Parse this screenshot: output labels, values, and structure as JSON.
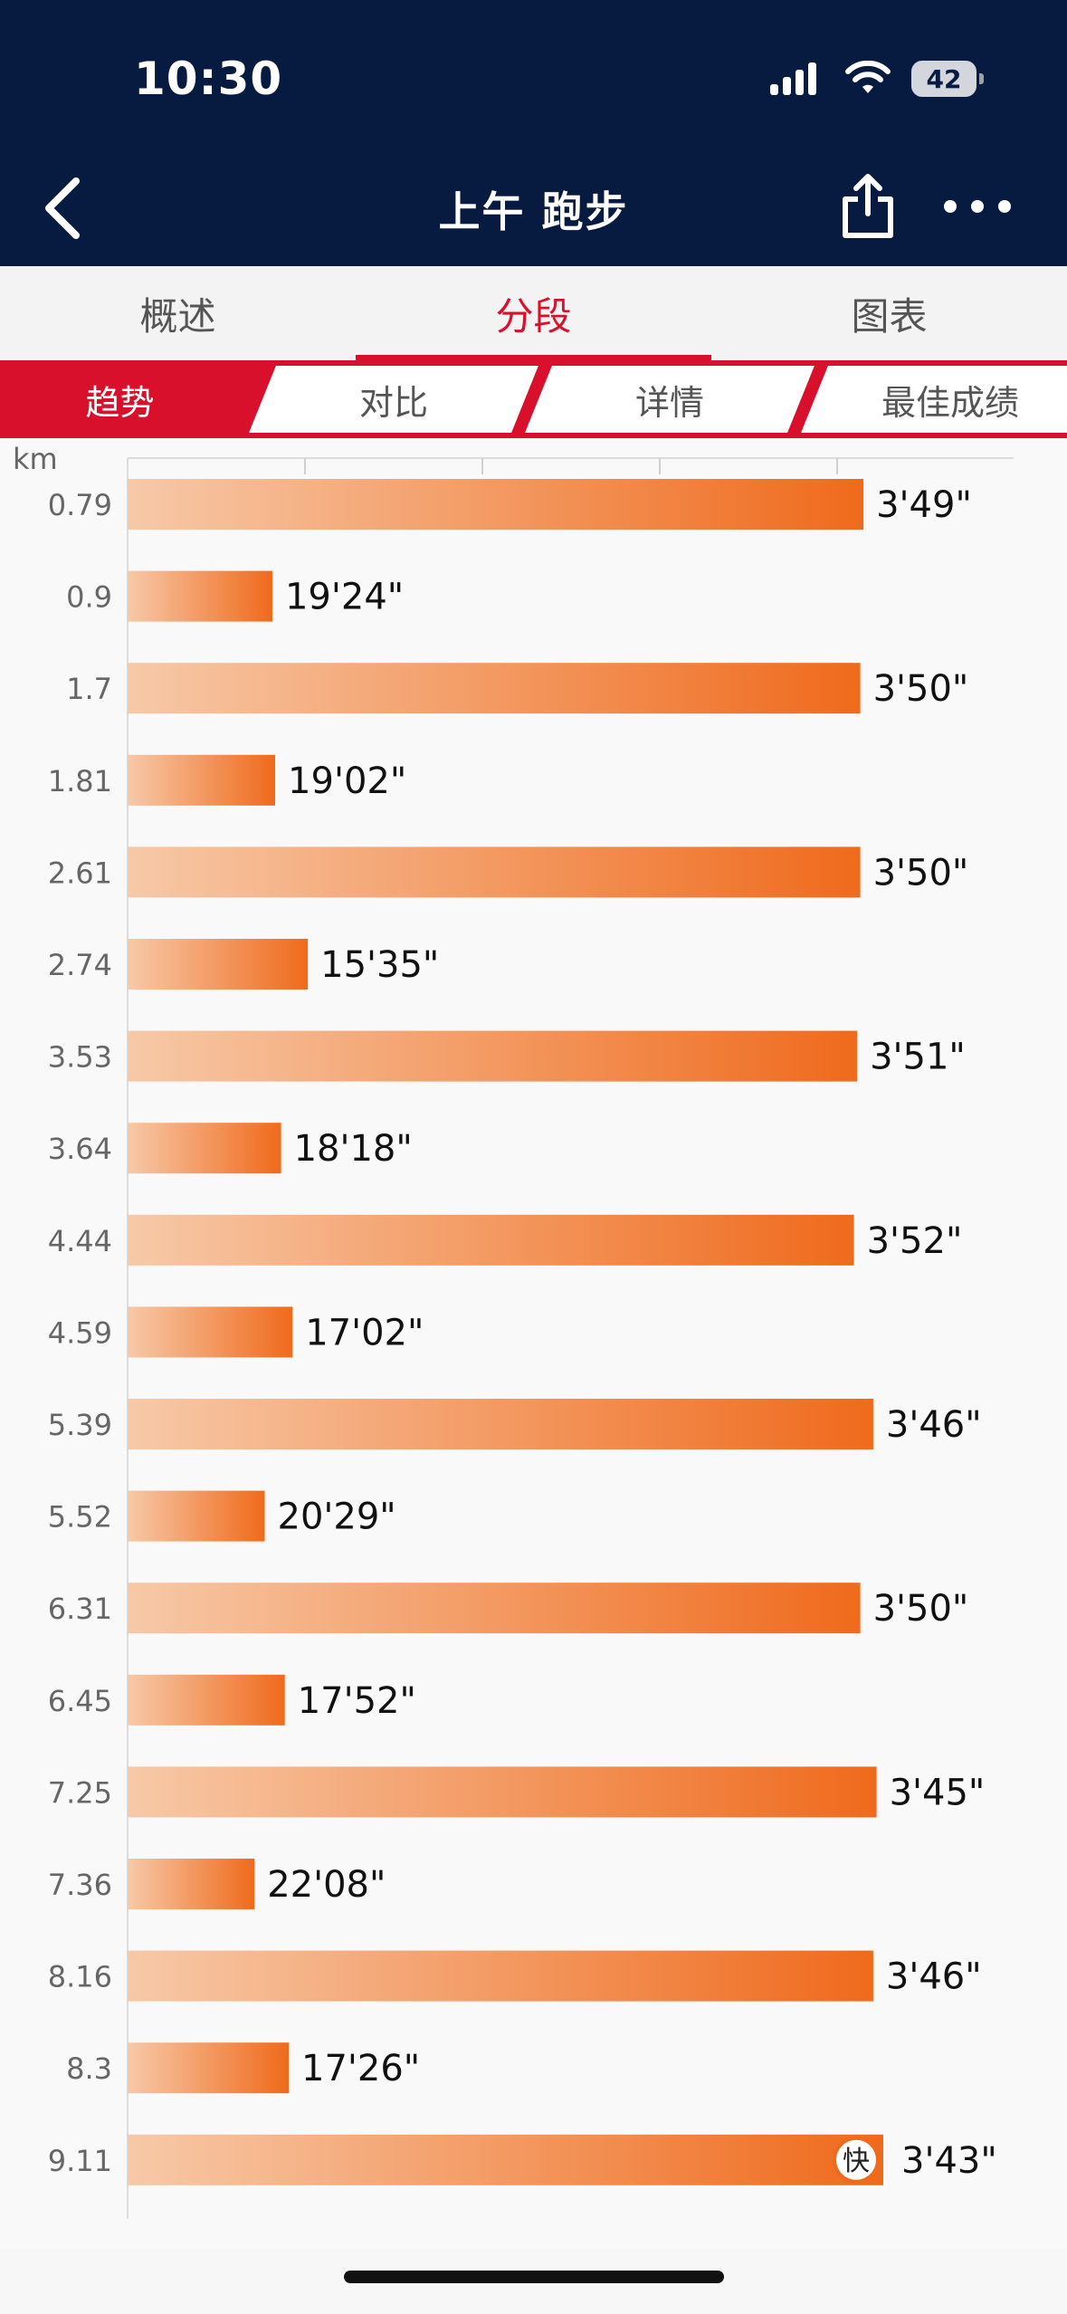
{
  "status_bar": {
    "time": "10:30",
    "battery": "42"
  },
  "nav": {
    "title": "上午 跑步"
  },
  "tabs": [
    {
      "label": "概述",
      "active": false
    },
    {
      "label": "分段",
      "active": true
    },
    {
      "label": "图表",
      "active": false
    }
  ],
  "subtabs": [
    {
      "label": "趋势",
      "active": true
    },
    {
      "label": "对比",
      "active": false
    },
    {
      "label": "详情",
      "active": false
    },
    {
      "label": "最佳成绩",
      "active": false
    }
  ],
  "chart_data": {
    "type": "bar",
    "orientation": "horizontal",
    "ylabel": "km",
    "categories": [
      "0.79",
      "0.9",
      "1.7",
      "1.81",
      "2.61",
      "2.74",
      "3.53",
      "3.64",
      "4.44",
      "4.59",
      "5.39",
      "5.52",
      "6.31",
      "6.45",
      "7.25",
      "7.36",
      "8.16",
      "8.3",
      "9.11"
    ],
    "values_sec": [
      229,
      1164,
      230,
      1142,
      230,
      935,
      231,
      1098,
      232,
      1022,
      226,
      1229,
      230,
      1072,
      225,
      1328,
      226,
      1046,
      223
    ],
    "labels": [
      "3'49\"",
      "19'24\"",
      "3'50\"",
      "19'02\"",
      "3'50\"",
      "15'35\"",
      "3'51\"",
      "18'18\"",
      "3'52\"",
      "17'02\"",
      "3'46\"",
      "20'29\"",
      "3'50\"",
      "17'52\"",
      "3'45\"",
      "22'08\"",
      "3'46\"",
      "17'26\"",
      "3'43\""
    ],
    "fastest_index": 18,
    "fastest_badge": "快",
    "bar_scale": "inverse pace (longer bar = faster pace)",
    "colors": {
      "bar_start": "#f7c9a8",
      "bar_end": "#ef6a1c",
      "badge_border": "#ef6a1c"
    },
    "grid": true
  }
}
